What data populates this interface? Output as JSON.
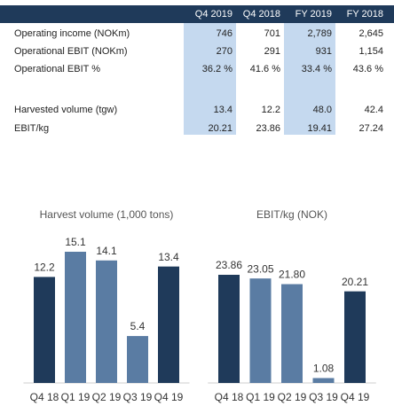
{
  "table": {
    "columns": [
      "Q4 2019",
      "Q4 2018",
      "FY 2019",
      "FY 2018"
    ],
    "rows": [
      {
        "label": "Operating income (NOKm)",
        "cells": [
          "746",
          "701",
          "2,789",
          "2,645"
        ]
      },
      {
        "label": "Operational EBIT (NOKm)",
        "cells": [
          "270",
          "291",
          "931",
          "1,154"
        ]
      },
      {
        "label": "Operational EBIT %",
        "cells": [
          "36.2 %",
          "41.6 %",
          "33.4 %",
          "43.6 %"
        ]
      },
      {
        "label": "Harvested volume (tgw)",
        "cells": [
          "13.4",
          "12.2",
          "48.0",
          "42.4"
        ]
      },
      {
        "label": "EBIT/kg",
        "cells": [
          "20.21",
          "23.86",
          "19.41",
          "27.24"
        ]
      }
    ]
  },
  "chart_data": [
    {
      "type": "bar",
      "title": "Harvest volume (1,000 tons)",
      "categories": [
        "Q4 18",
        "Q1 19",
        "Q2 19",
        "Q3 19",
        "Q4 19"
      ],
      "values": [
        12.2,
        15.1,
        14.1,
        5.4,
        13.4
      ],
      "colors": [
        "#1f3a5a",
        "#5a7ca3",
        "#5a7ca3",
        "#5a7ca3",
        "#1f3a5a"
      ]
    },
    {
      "type": "bar",
      "title": "EBIT/kg (NOK)",
      "categories": [
        "Q4 18",
        "Q1 19",
        "Q2 19",
        "Q3 19",
        "Q4 19"
      ],
      "values": [
        23.86,
        23.05,
        21.8,
        1.08,
        20.21
      ],
      "value_labels": [
        "23.86",
        "23.05",
        "21.80",
        "1.08",
        "20.21"
      ],
      "colors": [
        "#1f3a5a",
        "#5a7ca3",
        "#5a7ca3",
        "#5a7ca3",
        "#1f3a5a"
      ]
    }
  ]
}
